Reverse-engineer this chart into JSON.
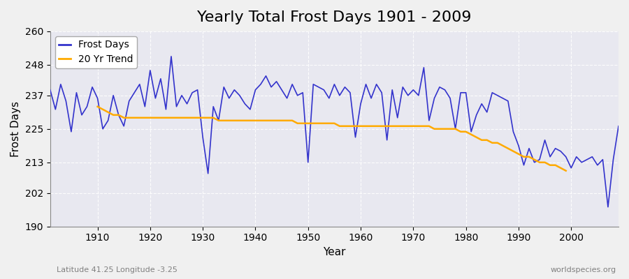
{
  "title": "Yearly Total Frost Days 1901 - 2009",
  "xlabel": "Year",
  "ylabel": "Frost Days",
  "subtitle_left": "Latitude 41.25 Longitude -3.25",
  "subtitle_right": "worldspecies.org",
  "line_color": "#3333cc",
  "trend_color": "#ffaa00",
  "bg_color": "#e8e8f0",
  "years": [
    1901,
    1902,
    1903,
    1904,
    1905,
    1906,
    1907,
    1908,
    1909,
    1910,
    1911,
    1912,
    1913,
    1914,
    1915,
    1916,
    1917,
    1918,
    1919,
    1920,
    1921,
    1922,
    1923,
    1924,
    1925,
    1926,
    1927,
    1928,
    1929,
    1930,
    1931,
    1932,
    1933,
    1934,
    1935,
    1936,
    1937,
    1938,
    1939,
    1940,
    1941,
    1942,
    1943,
    1944,
    1945,
    1946,
    1947,
    1948,
    1949,
    1950,
    1951,
    1952,
    1953,
    1954,
    1955,
    1956,
    1957,
    1958,
    1959,
    1960,
    1961,
    1962,
    1963,
    1964,
    1965,
    1966,
    1967,
    1968,
    1969,
    1970,
    1971,
    1972,
    1973,
    1974,
    1975,
    1976,
    1977,
    1978,
    1979,
    1980,
    1981,
    1982,
    1983,
    1984,
    1985,
    1986,
    1987,
    1988,
    1989,
    1990,
    1991,
    1992,
    1993,
    1994,
    1995,
    1996,
    1997,
    1998,
    1999,
    2000,
    2001,
    2002,
    2003,
    2004,
    2005,
    2006,
    2007,
    2008,
    2009
  ],
  "frost_days": [
    239,
    232,
    241,
    235,
    224,
    238,
    230,
    233,
    240,
    236,
    225,
    228,
    237,
    230,
    226,
    235,
    238,
    241,
    233,
    246,
    236,
    243,
    232,
    251,
    233,
    237,
    234,
    238,
    239,
    222,
    209,
    233,
    228,
    240,
    236,
    239,
    237,
    234,
    232,
    239,
    241,
    244,
    240,
    242,
    239,
    236,
    241,
    237,
    238,
    213,
    241,
    240,
    239,
    236,
    241,
    237,
    240,
    238,
    222,
    234,
    241,
    236,
    241,
    238,
    221,
    239,
    229,
    240,
    237,
    239,
    237,
    247,
    228,
    236,
    240,
    239,
    236,
    225,
    238,
    238,
    224,
    230,
    234,
    231,
    238,
    237,
    236,
    235,
    224,
    219,
    212,
    218,
    213,
    214,
    221,
    215,
    218,
    217,
    215,
    211,
    215,
    213,
    214,
    215,
    212,
    214,
    197,
    214,
    226
  ],
  "trend_years": [
    1910,
    1911,
    1912,
    1913,
    1914,
    1915,
    1916,
    1917,
    1918,
    1919,
    1920,
    1921,
    1922,
    1923,
    1924,
    1925,
    1926,
    1927,
    1928,
    1929,
    1930,
    1931,
    1932,
    1933,
    1934,
    1935,
    1936,
    1937,
    1938,
    1939,
    1940,
    1941,
    1942,
    1943,
    1944,
    1945,
    1946,
    1947,
    1948,
    1949,
    1950,
    1951,
    1952,
    1953,
    1954,
    1955,
    1956,
    1957,
    1958,
    1959,
    1960,
    1961,
    1962,
    1963,
    1964,
    1965,
    1966,
    1967,
    1968,
    1969,
    1970,
    1971,
    1972,
    1973,
    1974,
    1975,
    1976,
    1977,
    1978,
    1979,
    1980,
    1981,
    1982,
    1983,
    1984,
    1985,
    1986,
    1987,
    1988,
    1989,
    1990,
    1991,
    1992,
    1993,
    1994,
    1995,
    1996,
    1997,
    1998,
    1999
  ],
  "trend_values": [
    233,
    232,
    231,
    230,
    230,
    229,
    229,
    229,
    229,
    229,
    229,
    229,
    229,
    229,
    229,
    229,
    229,
    229,
    229,
    229,
    229,
    229,
    229,
    228,
    228,
    228,
    228,
    228,
    228,
    228,
    228,
    228,
    228,
    228,
    228,
    228,
    228,
    228,
    227,
    227,
    227,
    227,
    227,
    227,
    227,
    227,
    226,
    226,
    226,
    226,
    226,
    226,
    226,
    226,
    226,
    226,
    226,
    226,
    226,
    226,
    226,
    226,
    226,
    226,
    225,
    225,
    225,
    225,
    225,
    224,
    224,
    223,
    222,
    221,
    221,
    220,
    220,
    219,
    218,
    217,
    216,
    215,
    215,
    214,
    213,
    213,
    212,
    212,
    211,
    210
  ],
  "ylim": [
    190,
    260
  ],
  "yticks": [
    190,
    202,
    213,
    225,
    237,
    248,
    260
  ],
  "xlim": [
    1901,
    2009
  ],
  "xticks": [
    1910,
    1920,
    1930,
    1940,
    1950,
    1960,
    1970,
    1980,
    1990,
    2000
  ],
  "title_fontsize": 16,
  "axis_fontsize": 11,
  "legend_fontsize": 10,
  "tick_fontsize": 10
}
